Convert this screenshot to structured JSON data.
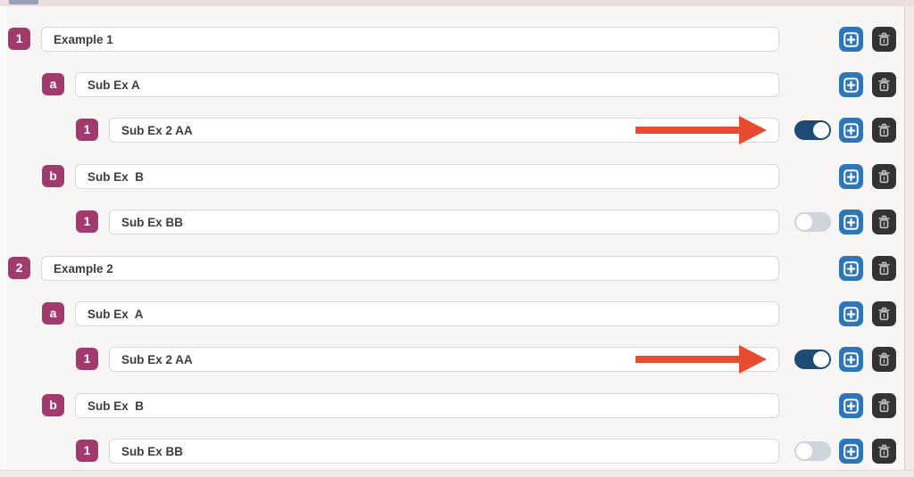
{
  "colors": {
    "page_bg": "#f7f6f5",
    "band_pink": "#ecdfdf",
    "band_pink_light": "#f3e8e8",
    "chip_blue": "#98a0ba",
    "badge_bg": "#a23a6e",
    "toggle_on": "#1d4b73",
    "toggle_off": "#ced4db",
    "plus_bg": "#2e76b7",
    "trash_bg": "#333333",
    "arrow_red": "#e84c30"
  },
  "icons": {
    "add": "plus-square-icon",
    "delete": "trash-icon"
  },
  "rows": [
    {
      "level": 1,
      "badge": "1",
      "value": "Example 1",
      "toggle": "none",
      "arrow": false
    },
    {
      "level": 2,
      "badge": "a",
      "value": "Sub Ex A",
      "toggle": "none",
      "arrow": false
    },
    {
      "level": 3,
      "badge": "1",
      "value": "Sub Ex 2 AA",
      "toggle": "on",
      "arrow": true
    },
    {
      "level": 2,
      "badge": "b",
      "value": "Sub Ex  B",
      "toggle": "none",
      "arrow": false
    },
    {
      "level": 3,
      "badge": "1",
      "value": "Sub Ex BB",
      "toggle": "off",
      "arrow": false
    },
    {
      "level": 1,
      "badge": "2",
      "value": "Example 2",
      "toggle": "none",
      "arrow": false
    },
    {
      "level": 2,
      "badge": "a",
      "value": "Sub Ex  A",
      "toggle": "none",
      "arrow": false
    },
    {
      "level": 3,
      "badge": "1",
      "value": "Sub Ex 2 AA",
      "toggle": "on",
      "arrow": true
    },
    {
      "level": 2,
      "badge": "b",
      "value": "Sub Ex  B",
      "toggle": "none",
      "arrow": false
    },
    {
      "level": 3,
      "badge": "1",
      "value": "Sub Ex BB",
      "toggle": "off",
      "arrow": false
    }
  ]
}
